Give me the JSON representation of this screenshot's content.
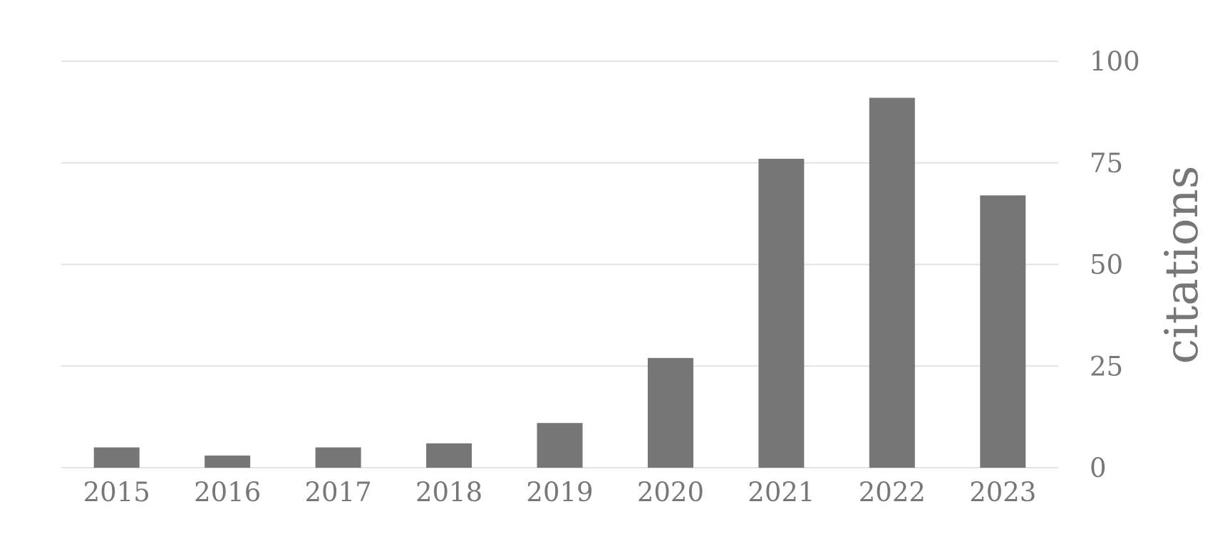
{
  "chart_data": {
    "type": "bar",
    "categories": [
      "2015",
      "2016",
      "2017",
      "2018",
      "2019",
      "2020",
      "2021",
      "2022",
      "2023"
    ],
    "values": [
      5,
      3,
      5,
      6,
      11,
      27,
      76,
      91,
      67
    ],
    "ylabel": "citations",
    "ylim": [
      0,
      100
    ],
    "yticks": [
      "0",
      "25",
      "50",
      "75",
      "100"
    ],
    "y_axis_position": "right",
    "grid": true,
    "colors": {
      "bar": "#767676",
      "grid": "#e3e3e3",
      "text": "#777777"
    }
  }
}
